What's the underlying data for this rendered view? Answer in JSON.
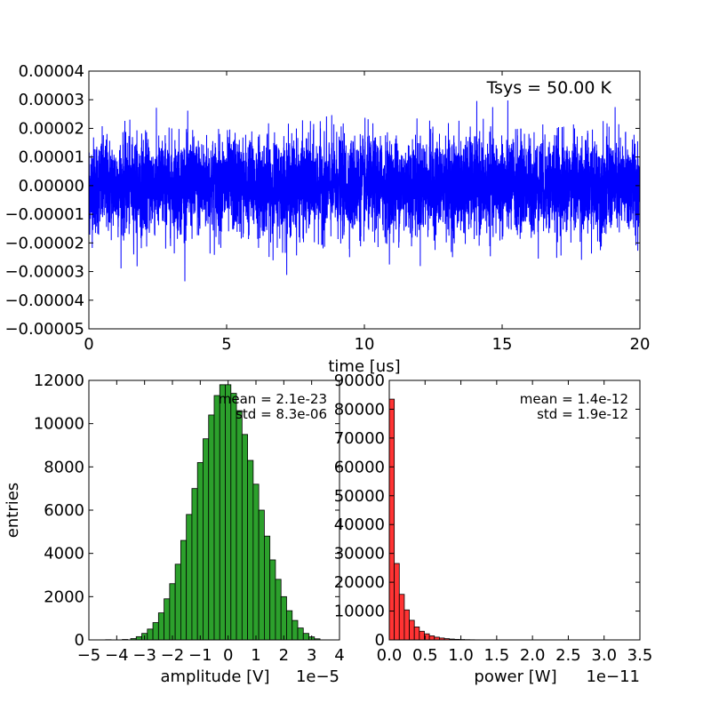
{
  "chart_data": [
    {
      "type": "line",
      "color": "#0000ff",
      "xlabel": "time [us]",
      "ylabel": "",
      "xlim": [
        0,
        20
      ],
      "ylim": [
        -5e-05,
        4e-05
      ],
      "xticks": [
        0,
        5,
        10,
        15,
        20
      ],
      "xtick_labels": [
        "0",
        "5",
        "10",
        "15",
        "20"
      ],
      "yticks": [
        -5e-05,
        -4e-05,
        -3e-05,
        -2e-05,
        -1e-05,
        0,
        1e-05,
        2e-05,
        3e-05,
        4e-05
      ],
      "ytick_labels": [
        "−0.00005",
        "−0.00004",
        "−0.00003",
        "−0.00002",
        "−0.00001",
        "0.00000",
        "0.00001",
        "0.00002",
        "0.00003",
        "0.00004"
      ],
      "annotation": "Tsys = 50.00 K",
      "std": 8.3e-06,
      "grid": false
    },
    {
      "type": "bar",
      "color": "#2ca02c",
      "xlabel": "amplitude [V]",
      "ylabel": "entries",
      "xlim": [
        -5,
        4
      ],
      "ylim": [
        0,
        12000
      ],
      "x_offset_label": "1e−5",
      "xticks": [
        -5,
        -4,
        -3,
        -2,
        -1,
        0,
        1,
        2,
        3,
        4
      ],
      "xtick_labels": [
        "−5",
        "−4",
        "−3",
        "−2",
        "−1",
        "0",
        "1",
        "2",
        "3",
        "4"
      ],
      "yticks": [
        0,
        2000,
        4000,
        6000,
        8000,
        10000,
        12000
      ],
      "ytick_labels": [
        "0",
        "2000",
        "4000",
        "6000",
        "8000",
        "10000",
        "12000"
      ],
      "bin_centers": [
        -4.3,
        -3.7,
        -3.4,
        -3.2,
        -3.0,
        -2.8,
        -2.6,
        -2.4,
        -2.2,
        -2.0,
        -1.8,
        -1.6,
        -1.4,
        -1.2,
        -1.0,
        -0.8,
        -0.6,
        -0.4,
        -0.2,
        0.0,
        0.2,
        0.4,
        0.6,
        0.8,
        1.0,
        1.2,
        1.4,
        1.6,
        1.8,
        2.0,
        2.2,
        2.4,
        2.6,
        2.8,
        3.0,
        3.2
      ],
      "values": [
        10,
        20,
        60,
        150,
        300,
        500,
        800,
        1250,
        1900,
        2600,
        3500,
        4600,
        5800,
        7000,
        8200,
        9300,
        10400,
        11300,
        11800,
        11800,
        11400,
        10600,
        9500,
        8300,
        7200,
        6000,
        4800,
        3700,
        2800,
        2000,
        1350,
        900,
        550,
        300,
        140,
        50
      ],
      "annotations": [
        "mean = 2.1e-23",
        "std = 8.3e-06"
      ],
      "grid": false
    },
    {
      "type": "bar",
      "color": "#ff3333",
      "xlabel": "power [W]",
      "ylabel": "",
      "xlim": [
        0,
        3.5
      ],
      "ylim": [
        0,
        90000
      ],
      "x_offset_label": "1e−11",
      "xticks": [
        0,
        0.5,
        1.0,
        1.5,
        2.0,
        2.5,
        3.0,
        3.5
      ],
      "xtick_labels": [
        "0.0",
        "0.5",
        "1.0",
        "1.5",
        "2.0",
        "2.5",
        "3.0",
        "3.5"
      ],
      "yticks": [
        0,
        10000,
        20000,
        30000,
        40000,
        50000,
        60000,
        70000,
        80000,
        90000
      ],
      "ytick_labels": [
        "0",
        "10000",
        "20000",
        "30000",
        "40000",
        "50000",
        "60000",
        "70000",
        "80000",
        "90000"
      ],
      "bin_width": 0.07,
      "bin_starts": [
        0.0,
        0.07,
        0.14,
        0.21,
        0.28,
        0.35,
        0.42,
        0.49,
        0.56,
        0.63,
        0.7,
        0.77,
        0.84,
        0.91,
        0.98,
        1.05,
        1.12,
        1.19
      ],
      "values": [
        83500,
        26500,
        15800,
        10400,
        6800,
        4500,
        3000,
        2100,
        1400,
        950,
        650,
        430,
        290,
        190,
        130,
        90,
        60,
        40
      ],
      "annotations": [
        "mean = 1.4e-12",
        "std = 1.9e-12"
      ],
      "grid": false
    }
  ]
}
